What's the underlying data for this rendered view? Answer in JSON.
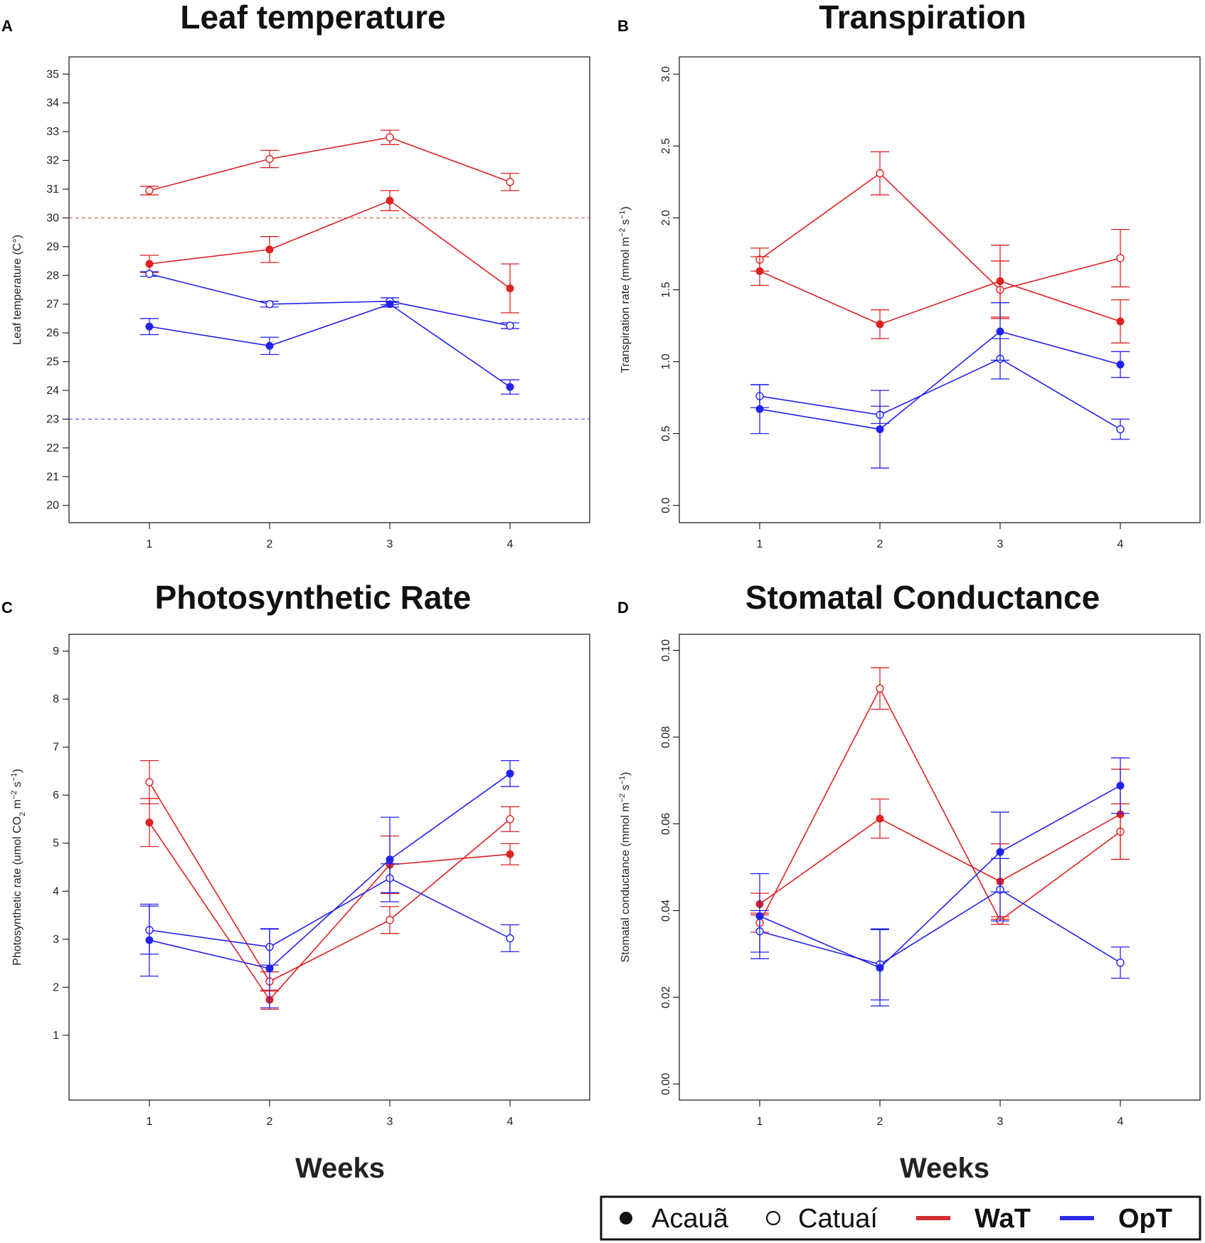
{
  "colors": {
    "WaT": "#dd2222",
    "OpT": "#2222ee",
    "axis": "#222222"
  },
  "legend": {
    "acaua": "Acauã",
    "catuai": "Catuaí",
    "wat": "WaT",
    "opt": "OpT"
  },
  "xlabel": "Weeks",
  "chart_data": [
    {
      "id": "A",
      "panel_label": "A",
      "type": "line",
      "title": "Leaf temperature",
      "ylabel": "Leaf temperature (C°)",
      "ylabel_parts": null,
      "x": [
        1,
        2,
        3,
        4
      ],
      "xticks": [
        "1",
        "2",
        "3",
        "4"
      ],
      "ylim": [
        19.4,
        35.6
      ],
      "yticks": [
        20,
        21,
        22,
        23,
        24,
        25,
        26,
        27,
        28,
        29,
        30,
        31,
        32,
        33,
        34,
        35
      ],
      "ytick_labels": [
        "20",
        "21",
        "22",
        "23",
        "24",
        "25",
        "26",
        "27",
        "28",
        "29",
        "30",
        "31",
        "32",
        "33",
        "34",
        "35"
      ],
      "ytick_rotated": false,
      "hlines": [
        {
          "y": 30,
          "color": "WaT"
        },
        {
          "y": 23,
          "color": "OpT"
        }
      ],
      "series": [
        {
          "name": "Catuaí WaT",
          "cultivar": "Catuaí",
          "treatment": "WaT",
          "filled": false,
          "values": [
            30.95,
            32.05,
            32.8,
            31.25
          ],
          "errors": [
            0.15,
            0.3,
            0.25,
            0.3
          ]
        },
        {
          "name": "Acauã WaT",
          "cultivar": "Acauã",
          "treatment": "WaT",
          "filled": true,
          "values": [
            28.4,
            28.9,
            30.6,
            27.55
          ],
          "errors": [
            0.3,
            0.45,
            0.35,
            0.85
          ]
        },
        {
          "name": "Catuaí OpT",
          "cultivar": "Catuaí",
          "treatment": "OpT",
          "filled": false,
          "values": [
            28.05,
            27.0,
            27.1,
            26.25
          ],
          "errors": [
            0.08,
            0.1,
            0.12,
            0.1
          ]
        },
        {
          "name": "Acauã OpT",
          "cultivar": "Acauã",
          "treatment": "OpT",
          "filled": true,
          "values": [
            26.22,
            25.55,
            27.0,
            24.12
          ],
          "errors": [
            0.28,
            0.3,
            0.1,
            0.25
          ]
        }
      ]
    },
    {
      "id": "B",
      "panel_label": "B",
      "type": "line",
      "title": "Transpiration",
      "ylabel": "Transpiration rate (mmol m−2 s−1)",
      "ylabel_parts": [
        "Transpiration rate (mmol m",
        "−2",
        " s",
        "−1",
        ")"
      ],
      "x": [
        1,
        2,
        3,
        4
      ],
      "xticks": [
        "1",
        "2",
        "3",
        "4"
      ],
      "ylim": [
        -0.12,
        3.12
      ],
      "yticks": [
        0.0,
        0.5,
        1.0,
        1.5,
        2.0,
        2.5,
        3.0
      ],
      "ytick_labels": [
        "0.0",
        "0.5",
        "1.0",
        "1.5",
        "2.0",
        "2.5",
        "3.0"
      ],
      "ytick_rotated": true,
      "hlines": [],
      "series": [
        {
          "name": "Catuaí WaT",
          "cultivar": "Catuaí",
          "treatment": "WaT",
          "filled": false,
          "values": [
            1.71,
            2.31,
            1.5,
            1.72
          ],
          "errors": [
            0.08,
            0.15,
            0.2,
            0.2
          ]
        },
        {
          "name": "Acauã WaT",
          "cultivar": "Acauã",
          "treatment": "WaT",
          "filled": true,
          "values": [
            1.63,
            1.26,
            1.56,
            1.28
          ],
          "errors": [
            0.1,
            0.1,
            0.25,
            0.15
          ]
        },
        {
          "name": "Catuaí OpT",
          "cultivar": "Catuaí",
          "treatment": "OpT",
          "filled": false,
          "values": [
            0.76,
            0.63,
            1.02,
            0.53
          ],
          "errors": [
            0.08,
            0.06,
            0.14,
            0.07
          ]
        },
        {
          "name": "Acauã OpT",
          "cultivar": "Acauã",
          "treatment": "OpT",
          "filled": true,
          "values": [
            0.67,
            0.53,
            1.21,
            0.98
          ],
          "errors": [
            0.17,
            0.27,
            0.2,
            0.09
          ]
        }
      ]
    },
    {
      "id": "C",
      "panel_label": "C",
      "type": "line",
      "title": "Photosynthetic Rate",
      "ylabel": "Photosynthetic rate (umol CO2 m−2 s−1)",
      "ylabel_parts": [
        "Photosynthetic rate (umol CO",
        "2",
        " m",
        "−2",
        " s",
        "−1",
        ")"
      ],
      "ylabel_scripts": [
        "",
        "sub",
        "",
        "sup",
        "",
        "sup",
        ""
      ],
      "x": [
        1,
        2,
        3,
        4
      ],
      "xticks": [
        "1",
        "2",
        "3",
        "4"
      ],
      "ylim": [
        -0.35,
        9.35
      ],
      "yticks": [
        1,
        2,
        3,
        4,
        5,
        6,
        7,
        8,
        9
      ],
      "ytick_labels": [
        "1",
        "2",
        "3",
        "4",
        "5",
        "6",
        "7",
        "8",
        "9"
      ],
      "ytick_rotated": false,
      "hlines": [],
      "series": [
        {
          "name": "Catuaí WaT",
          "cultivar": "Catuaí",
          "treatment": "WaT",
          "filled": false,
          "values": [
            6.27,
            2.12,
            3.4,
            5.5
          ],
          "errors": [
            0.45,
            0.2,
            0.28,
            0.26
          ]
        },
        {
          "name": "Acauã WaT",
          "cultivar": "Acauã",
          "treatment": "WaT",
          "filled": true,
          "values": [
            5.43,
            1.74,
            4.55,
            4.77
          ],
          "errors": [
            0.5,
            0.2,
            0.6,
            0.22
          ]
        },
        {
          "name": "Catuaí OpT",
          "cultivar": "Catuaí",
          "treatment": "OpT",
          "filled": false,
          "values": [
            3.19,
            2.84,
            4.27,
            3.02
          ],
          "errors": [
            0.5,
            0.38,
            0.3,
            0.28
          ]
        },
        {
          "name": "Acauã OpT",
          "cultivar": "Acauã",
          "treatment": "OpT",
          "filled": true,
          "values": [
            2.98,
            2.39,
            4.66,
            6.45
          ],
          "errors": [
            0.75,
            0.82,
            0.88,
            0.27
          ]
        }
      ]
    },
    {
      "id": "D",
      "panel_label": "D",
      "type": "line",
      "title": "Stomatal Conductance",
      "ylabel": "Stomatal conductance (mmol m−2 s−1)",
      "ylabel_parts": [
        "Stomatal conductance (mmol m",
        "−2",
        " s",
        "−1",
        ")"
      ],
      "x": [
        1,
        2,
        3,
        4
      ],
      "xticks": [
        "1",
        "2",
        "3",
        "4"
      ],
      "ylim": [
        -0.0037,
        0.1037
      ],
      "yticks": [
        0.0,
        0.02,
        0.04,
        0.06,
        0.08,
        0.1
      ],
      "ytick_labels": [
        "0.00",
        "0.02",
        "0.04",
        "0.06",
        "0.08",
        "0.10"
      ],
      "ytick_rotated": true,
      "hlines": [],
      "series": [
        {
          "name": "Catuaí WaT",
          "cultivar": "Catuaí",
          "treatment": "WaT",
          "filled": false,
          "values": [
            0.0372,
            0.0912,
            0.0377,
            0.0582
          ],
          "errors": [
            0.0022,
            0.0048,
            0.0009,
            0.0064
          ]
        },
        {
          "name": "Acauã WaT",
          "cultivar": "Acauã",
          "treatment": "WaT",
          "filled": true,
          "values": [
            0.0415,
            0.0612,
            0.0467,
            0.0622
          ],
          "errors": [
            0.0025,
            0.0045,
            0.0087,
            0.0104
          ]
        },
        {
          "name": "Catuaí OpT",
          "cultivar": "Catuaí",
          "treatment": "OpT",
          "filled": false,
          "values": [
            0.0352,
            0.0276,
            0.0448,
            0.028
          ],
          "errors": [
            0.0048,
            0.0082,
            0.0072,
            0.0036
          ]
        },
        {
          "name": "Acauã OpT",
          "cultivar": "Acauã",
          "treatment": "OpT",
          "filled": true,
          "values": [
            0.0387,
            0.0268,
            0.0535,
            0.0688
          ],
          "errors": [
            0.0098,
            0.0088,
            0.0092,
            0.0064
          ]
        }
      ]
    }
  ]
}
